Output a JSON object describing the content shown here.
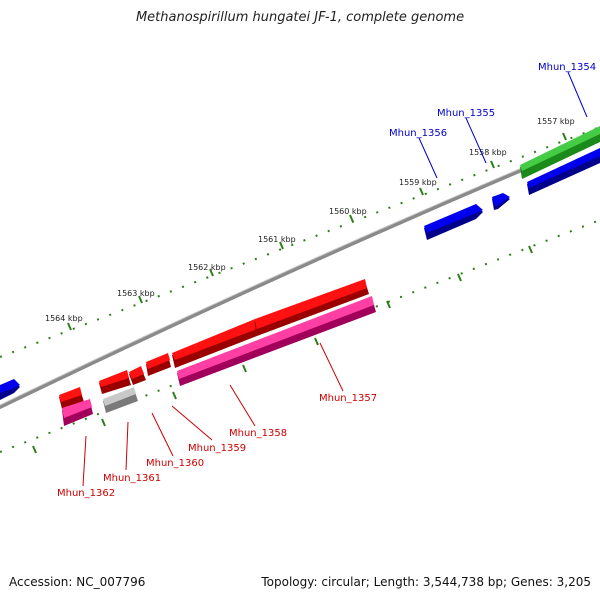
{
  "title": "Methanospirillum hungatei JF-1, complete genome",
  "footer": {
    "accession": "Accession: NC_007796",
    "topology": "Topology: circular; Length: 3,544,738 bp; Genes: 3,205"
  },
  "colors": {
    "backbone": "#8a8a8a",
    "tick": "#2e7d1a",
    "forward_label": "#0000cc",
    "reverse_label": "#cc0000",
    "gene_blue": "#0000dd",
    "gene_green": "#33bb33",
    "gene_red": "#ee0000",
    "gene_pink": "#ee1188",
    "gene_gray": "#bbbbbb"
  },
  "scale_labels": [
    "1557 kbp",
    "1558 kbp",
    "1559 kbp",
    "1560 kbp",
    "1561 kbp",
    "1562 kbp",
    "1563 kbp",
    "1564 kbp"
  ],
  "gene_labels": {
    "forward": [
      "Mhun_1354",
      "Mhun_1355",
      "Mhun_1356"
    ],
    "reverse": [
      "Mhun_1357",
      "Mhun_1358",
      "Mhun_1359",
      "Mhun_1360",
      "Mhun_1361",
      "Mhun_1362"
    ]
  }
}
